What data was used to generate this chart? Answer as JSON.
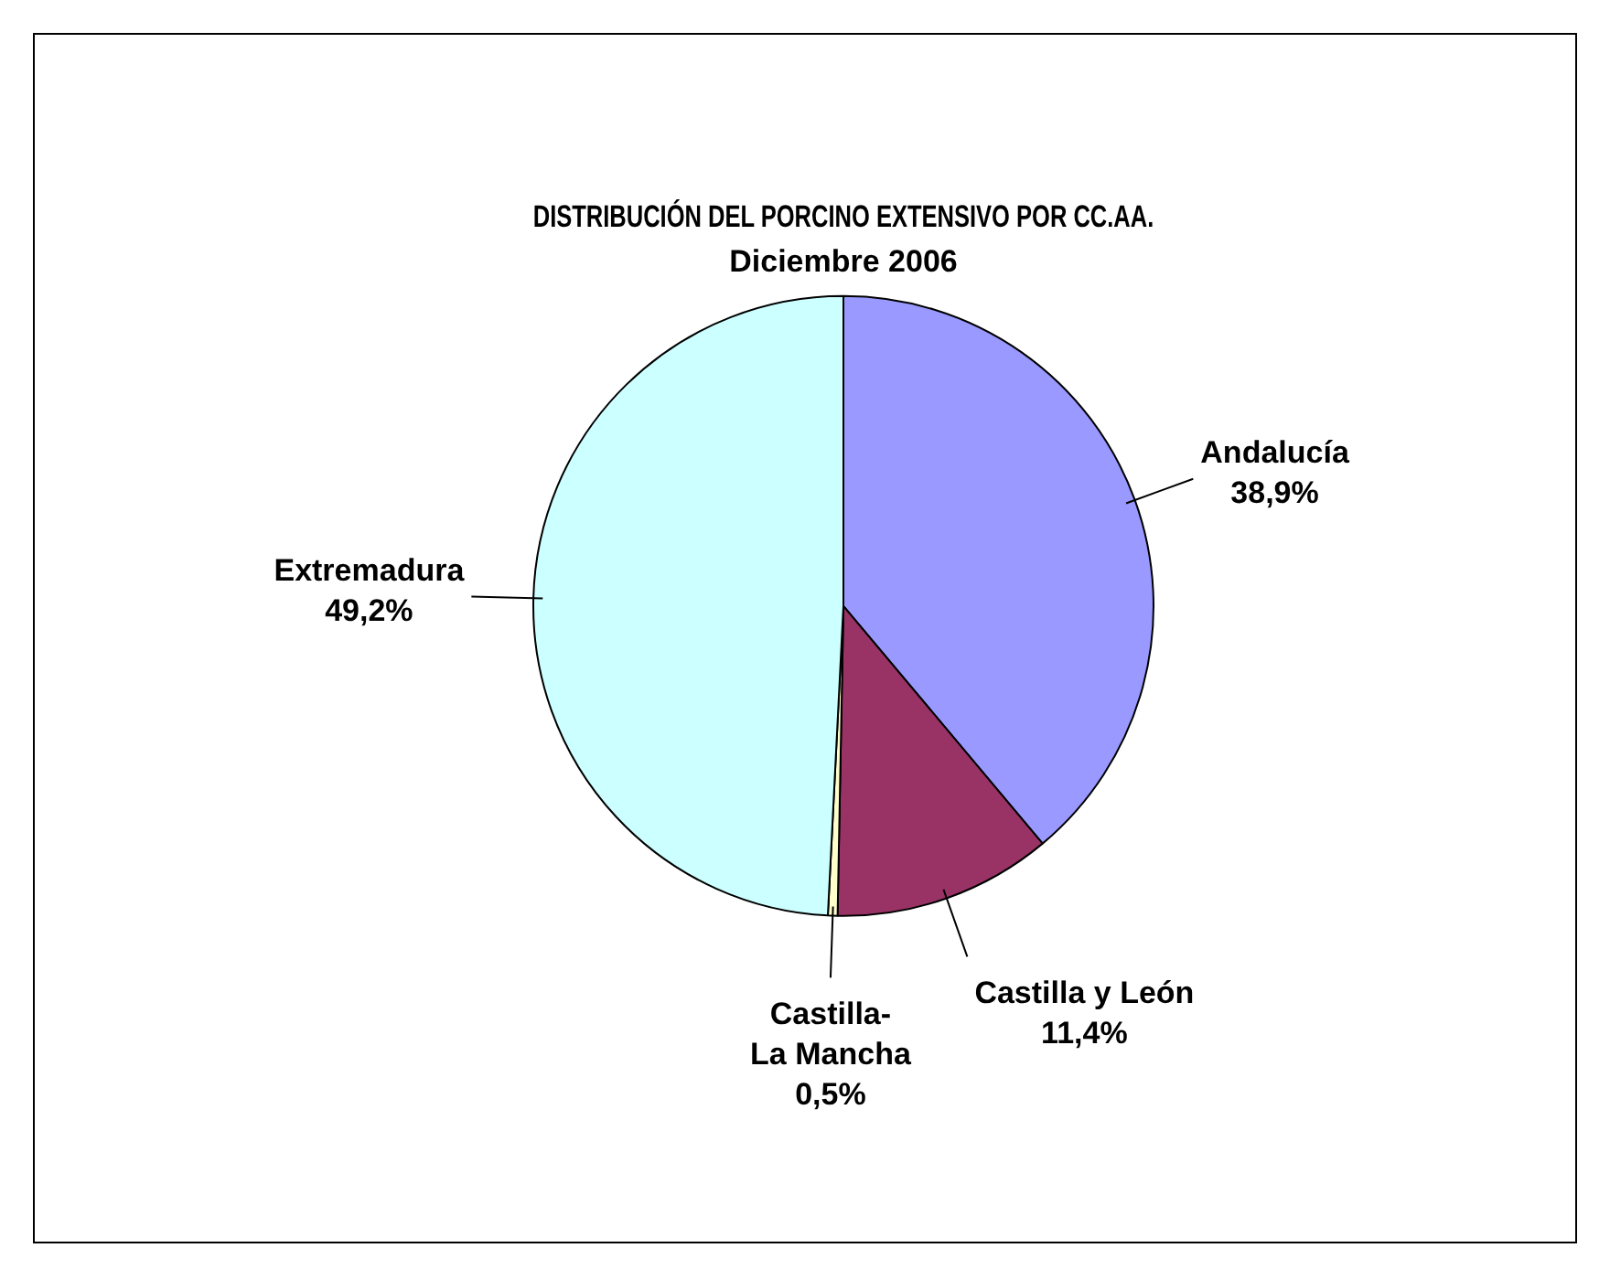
{
  "chart_data": {
    "type": "pie",
    "title": "DISTRIBUCIÓN DEL PORCINO EXTENSIVO POR CC.AA.",
    "subtitle": "Diciembre 2006",
    "categories": [
      "Andalucía",
      "Castilla y León",
      "Castilla-La Mancha",
      "Extremadura"
    ],
    "values": [
      38.9,
      11.4,
      0.5,
      49.2
    ],
    "colors": [
      "#9999ff",
      "#993366",
      "#ffffcc",
      "#ccffff"
    ],
    "value_labels": [
      "38,9%",
      "11,4%",
      "0,5%",
      "49,2%"
    ],
    "legend": false
  }
}
